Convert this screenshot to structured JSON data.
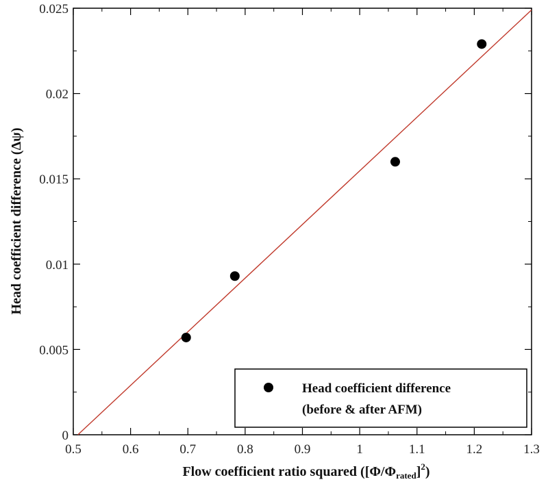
{
  "chart_data": {
    "type": "scatter",
    "xlabel_main": "Flow coefficient ratio squared ([Φ/Φ",
    "xlabel_sub": "rated",
    "xlabel_end": "]",
    "xlabel_sup": "2",
    "xlabel_close": ")",
    "ylabel": "Head coefficient difference (Δψ)",
    "xlim": [
      0.5,
      1.3
    ],
    "ylim": [
      0,
      0.025
    ],
    "x_ticks": [
      0.5,
      0.6,
      0.7,
      0.8,
      0.9,
      1,
      1.1,
      1.2,
      1.3
    ],
    "x_tick_labels": [
      "0.5",
      "0.6",
      "0.7",
      "0.8",
      "0.9",
      "1",
      "1.1",
      "1.2",
      "1.3"
    ],
    "y_ticks": [
      0,
      0.005,
      0.01,
      0.015,
      0.02,
      0.025
    ],
    "y_tick_labels": [
      "0",
      "0.005",
      "0.01",
      "0.015",
      "0.02",
      "0.025"
    ],
    "series": [
      {
        "name": "Head coefficient difference (before & after AFM)",
        "legend_lines": [
          "Head coefficient difference",
          "(before & after AFM)"
        ],
        "marker": "circle",
        "color": "#000000",
        "x": [
          0.697,
          0.782,
          1.062,
          1.213
        ],
        "y": [
          0.0057,
          0.0093,
          0.016,
          0.0229
        ]
      }
    ],
    "fit_line": {
      "color": "#c0392b",
      "x": [
        0.508,
        1.3
      ],
      "y": [
        0,
        0.0249
      ]
    },
    "legend_position": "bottom-right",
    "grid": false
  }
}
